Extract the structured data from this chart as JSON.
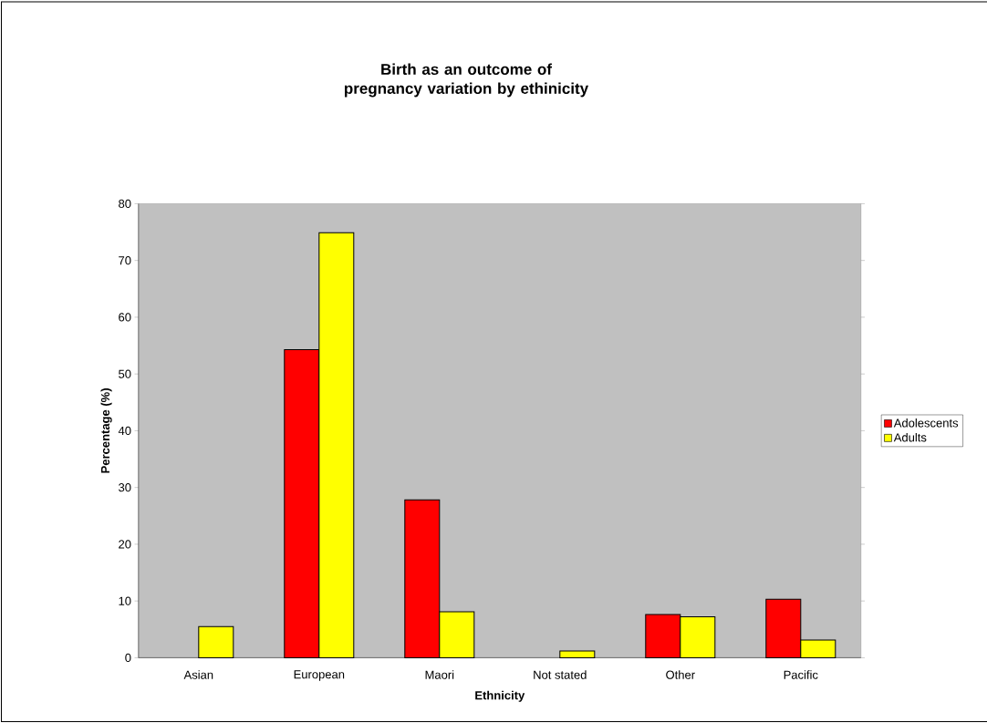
{
  "chart_data": {
    "type": "bar",
    "title": "Birth as an outcome of pregnancy variation by ethinicity",
    "xlabel": "Ethnicity",
    "ylabel": "Percentage (%)",
    "categories": [
      "Asian",
      "European",
      "Maori",
      "Not stated",
      "Other",
      "Pacific"
    ],
    "series": [
      {
        "name": "Adolescents",
        "color": "#ff0000",
        "values": [
          null,
          54.3,
          27.8,
          null,
          7.6,
          10.3
        ]
      },
      {
        "name": "Adults",
        "color": "#ffff00",
        "values": [
          5.5,
          74.9,
          8.1,
          1.2,
          7.2,
          3.1
        ]
      }
    ],
    "ylim": [
      0,
      80
    ],
    "yticks": [
      0,
      10,
      20,
      30,
      40,
      50,
      60,
      70,
      80
    ],
    "legend": "right",
    "grid": false
  }
}
